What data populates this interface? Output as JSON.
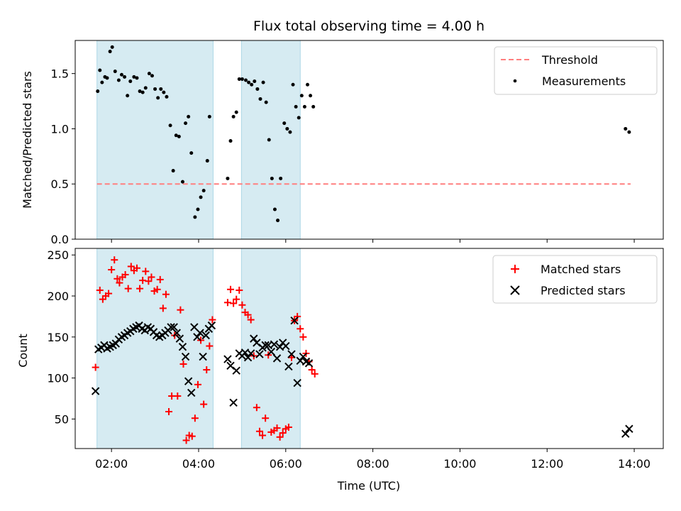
{
  "chart_data": [
    {
      "type": "scatter",
      "panel": "top",
      "title": "Flux total observing time = 4.00 h",
      "xlabel": "",
      "ylabel": "Matched/Predicted stars",
      "xlim": [
        "01:10",
        "14:40"
      ],
      "ylim": [
        0,
        1.8
      ],
      "x_ticks": [
        "02:00",
        "04:00",
        "06:00",
        "08:00",
        "10:00",
        "12:00",
        "14:00"
      ],
      "y_ticks": [
        0.0,
        0.5,
        1.0,
        1.5
      ],
      "y_tick_labels": [
        "0.0",
        "0.5",
        "1.0",
        "1.5"
      ],
      "shaded_intervals": [
        [
          "01:40",
          "04:20"
        ],
        [
          "04:59",
          "06:20"
        ]
      ],
      "legend": {
        "placement": "top-right"
      },
      "threshold": {
        "name": "Threshold",
        "value": 0.5,
        "x_range": [
          "01:40",
          "13:55"
        ],
        "color": "#ff7f7f"
      },
      "series": [
        {
          "name": "Measurements",
          "color": "#000000",
          "x": [
            "01:41",
            "01:44",
            "01:47",
            "01:51",
            "01:54",
            "01:58",
            "02:01",
            "02:05",
            "02:10",
            "02:14",
            "02:18",
            "02:22",
            "02:26",
            "02:31",
            "02:35",
            "02:39",
            "02:43",
            "02:47",
            "02:52",
            "02:56",
            "03:00",
            "03:04",
            "03:08",
            "03:12",
            "03:16",
            "03:21",
            "03:25",
            "03:29",
            "03:33",
            "03:38",
            "03:42",
            "03:46",
            "03:50",
            "03:55",
            "03:59",
            "04:03",
            "04:07",
            "04:12",
            "04:15",
            "04:40",
            "04:44",
            "04:48",
            "04:52",
            "04:56",
            "05:00",
            "05:05",
            "05:09",
            "05:13",
            "05:17",
            "05:21",
            "05:25",
            "05:29",
            "05:33",
            "05:37",
            "05:41",
            "05:45",
            "05:49",
            "05:53",
            "05:58",
            "06:02",
            "06:06",
            "06:10",
            "06:14",
            "06:18",
            "06:22",
            "06:26",
            "06:30",
            "06:34",
            "06:38",
            "13:48",
            "13:53"
          ],
          "y": [
            1.34,
            1.53,
            1.42,
            1.47,
            1.46,
            1.7,
            1.74,
            1.52,
            1.44,
            1.49,
            1.47,
            1.3,
            1.43,
            1.47,
            1.46,
            1.34,
            1.33,
            1.37,
            1.5,
            1.48,
            1.36,
            1.28,
            1.36,
            1.33,
            1.29,
            1.03,
            0.62,
            0.94,
            0.93,
            0.52,
            1.05,
            1.11,
            0.78,
            0.2,
            0.27,
            0.38,
            0.44,
            0.71,
            1.11,
            0.55,
            0.89,
            1.11,
            1.15,
            1.45,
            1.45,
            1.44,
            1.42,
            1.4,
            1.43,
            1.36,
            1.27,
            1.42,
            1.24,
            0.9,
            0.55,
            0.27,
            0.17,
            0.55,
            1.05,
            1.0,
            0.97,
            1.4,
            1.2,
            1.1,
            1.3,
            1.2,
            1.4,
            1.3,
            1.2,
            1.0,
            0.97
          ]
        }
      ]
    },
    {
      "type": "scatter",
      "panel": "bottom",
      "title": "",
      "xlabel": "Time (UTC)",
      "ylabel": "Count",
      "xlim": [
        "01:10",
        "14:40"
      ],
      "ylim": [
        14,
        258
      ],
      "x_ticks": [
        "02:00",
        "04:00",
        "06:00",
        "08:00",
        "10:00",
        "12:00",
        "14:00"
      ],
      "y_ticks": [
        50,
        100,
        150,
        200,
        250
      ],
      "shaded_intervals": [
        [
          "01:40",
          "04:20"
        ],
        [
          "04:59",
          "06:20"
        ]
      ],
      "legend": {
        "placement": "top-right"
      },
      "series": [
        {
          "name": "Matched stars",
          "marker": "+",
          "color": "#ff0000",
          "x": [
            "01:38",
            "01:44",
            "01:48",
            "01:52",
            "01:56",
            "02:00",
            "02:04",
            "02:08",
            "02:11",
            "02:15",
            "02:19",
            "02:23",
            "02:27",
            "02:31",
            "02:35",
            "02:39",
            "02:43",
            "02:47",
            "02:51",
            "02:55",
            "02:59",
            "03:03",
            "03:07",
            "03:11",
            "03:15",
            "03:19",
            "03:23",
            "03:27",
            "03:31",
            "03:35",
            "03:39",
            "03:43",
            "03:47",
            "03:51",
            "03:55",
            "03:59",
            "04:03",
            "04:07",
            "04:11",
            "04:15",
            "04:19",
            "04:40",
            "04:44",
            "04:48",
            "04:52",
            "04:56",
            "05:00",
            "05:04",
            "05:08",
            "05:12",
            "05:16",
            "05:20",
            "05:24",
            "05:28",
            "05:32",
            "05:36",
            "05:40",
            "05:44",
            "05:48",
            "05:52",
            "05:56",
            "06:00",
            "06:04",
            "06:08",
            "06:12",
            "06:16",
            "06:20",
            "06:24",
            "06:28",
            "06:32",
            "06:36",
            "06:40"
          ],
          "y": [
            113,
            207,
            196,
            200,
            203,
            232,
            244,
            221,
            216,
            223,
            226,
            209,
            236,
            231,
            234,
            209,
            219,
            230,
            218,
            223,
            206,
            208,
            220,
            185,
            202,
            59,
            78,
            152,
            78,
            183,
            117,
            24,
            30,
            29,
            51,
            92,
            146,
            68,
            110,
            139,
            171,
            192,
            208,
            191,
            196,
            207,
            189,
            180,
            177,
            171,
            127,
            64,
            35,
            30,
            51,
            128,
            34,
            36,
            39,
            28,
            33,
            38,
            40,
            125,
            170,
            175,
            160,
            150,
            130,
            120,
            110,
            105
          ],
          "x_used": 72
        },
        {
          "name": "Predicted stars",
          "marker": "x",
          "color": "#000000",
          "x": [
            "01:38",
            "01:42",
            "01:46",
            "01:50",
            "01:54",
            "01:58",
            "02:02",
            "02:06",
            "02:10",
            "02:14",
            "02:18",
            "02:22",
            "02:26",
            "02:30",
            "02:34",
            "02:38",
            "02:42",
            "02:46",
            "02:50",
            "02:54",
            "02:58",
            "03:02",
            "03:06",
            "03:10",
            "03:14",
            "03:18",
            "03:22",
            "03:26",
            "03:30",
            "03:34",
            "03:38",
            "03:42",
            "03:46",
            "03:50",
            "03:54",
            "03:58",
            "04:02",
            "04:06",
            "04:10",
            "04:14",
            "04:18",
            "04:40",
            "04:44",
            "04:48",
            "04:52",
            "04:56",
            "05:00",
            "05:04",
            "05:08",
            "05:12",
            "05:16",
            "05:20",
            "05:24",
            "05:28",
            "05:32",
            "05:36",
            "05:40",
            "05:44",
            "05:48",
            "05:52",
            "05:56",
            "06:00",
            "06:04",
            "06:08",
            "06:12",
            "06:16",
            "06:20",
            "06:24",
            "06:28",
            "06:32",
            "13:48",
            "13:53"
          ],
          "y": [
            84,
            135,
            137,
            140,
            136,
            138,
            140,
            142,
            147,
            150,
            152,
            155,
            157,
            160,
            162,
            164,
            160,
            158,
            162,
            160,
            156,
            152,
            150,
            152,
            155,
            158,
            162,
            162,
            155,
            148,
            138,
            126,
            96,
            82,
            162,
            150,
            155,
            126,
            152,
            160,
            164,
            123,
            115,
            70,
            109,
            130,
            127,
            131,
            125,
            130,
            148,
            143,
            129,
            137,
            140,
            140,
            132,
            141,
            124,
            138,
            143,
            139,
            114,
            129,
            170,
            94,
            121,
            126,
            120,
            118,
            32,
            38
          ]
        }
      ]
    }
  ]
}
